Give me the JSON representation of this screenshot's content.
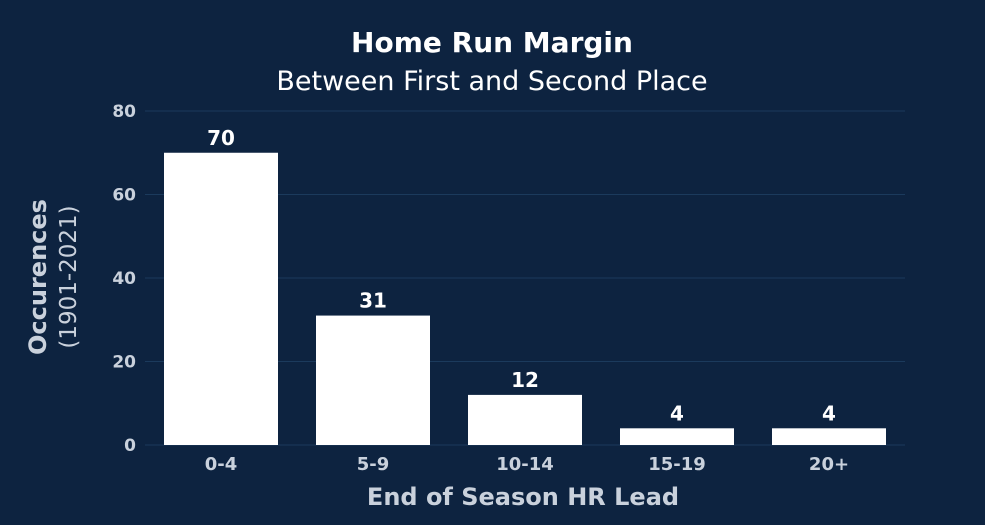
{
  "colors": {
    "background": "#0d2340",
    "bar": "#ffffff",
    "grid": "#1b3a5c",
    "title": "#ffffff",
    "axis_text": "#c9d1dc",
    "data_label": "#ffffff"
  },
  "chart_data": {
    "type": "bar",
    "title": "Home Run Margin",
    "subtitle": "Between First and Second Place",
    "xlabel": "End of Season HR Lead",
    "ylabel": "Occurences",
    "ylabel_sub": "(1901-2021)",
    "categories": [
      "0-4",
      "5-9",
      "10-14",
      "15-19",
      "20+"
    ],
    "values": [
      70,
      31,
      12,
      4,
      4
    ],
    "ylim": [
      0,
      80
    ],
    "yticks": [
      0,
      20,
      40,
      60,
      80
    ],
    "grid": true,
    "legend": "none"
  }
}
